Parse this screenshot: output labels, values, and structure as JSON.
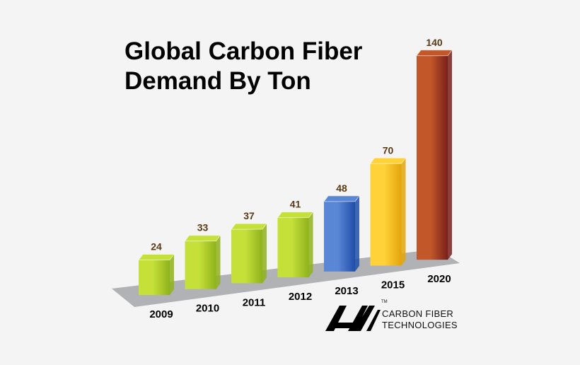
{
  "chart_data": {
    "type": "bar",
    "title_lines": [
      "Global Carbon Fiber",
      "Demand By Ton"
    ],
    "categories": [
      "2009",
      "2010",
      "2011",
      "2012",
      "2013",
      "2015",
      "2020"
    ],
    "values": [
      24,
      33,
      37,
      41,
      48,
      70,
      140
    ],
    "data_labels": [
      "24",
      "33",
      "37",
      "41",
      "48",
      "70",
      "140"
    ],
    "bar_colors": [
      [
        "#c6e03a",
        "#8fb21c"
      ],
      [
        "#c6e03a",
        "#8fb21c"
      ],
      [
        "#c6e03a",
        "#8fb21c"
      ],
      [
        "#c6e03a",
        "#8fb21c"
      ],
      [
        "#5a86d6",
        "#1f4ea8"
      ],
      [
        "#ffd23a",
        "#e3a40a"
      ],
      [
        "#c2582a",
        "#7a1f1a"
      ]
    ],
    "xlabel": "",
    "ylabel": "",
    "grid": false,
    "legend": "none"
  },
  "logo": {
    "line1": "CARBON FIBER",
    "line2": "TECHNOLOGIES",
    "tm": "TM",
    "icon": "lm-logo-icon"
  }
}
